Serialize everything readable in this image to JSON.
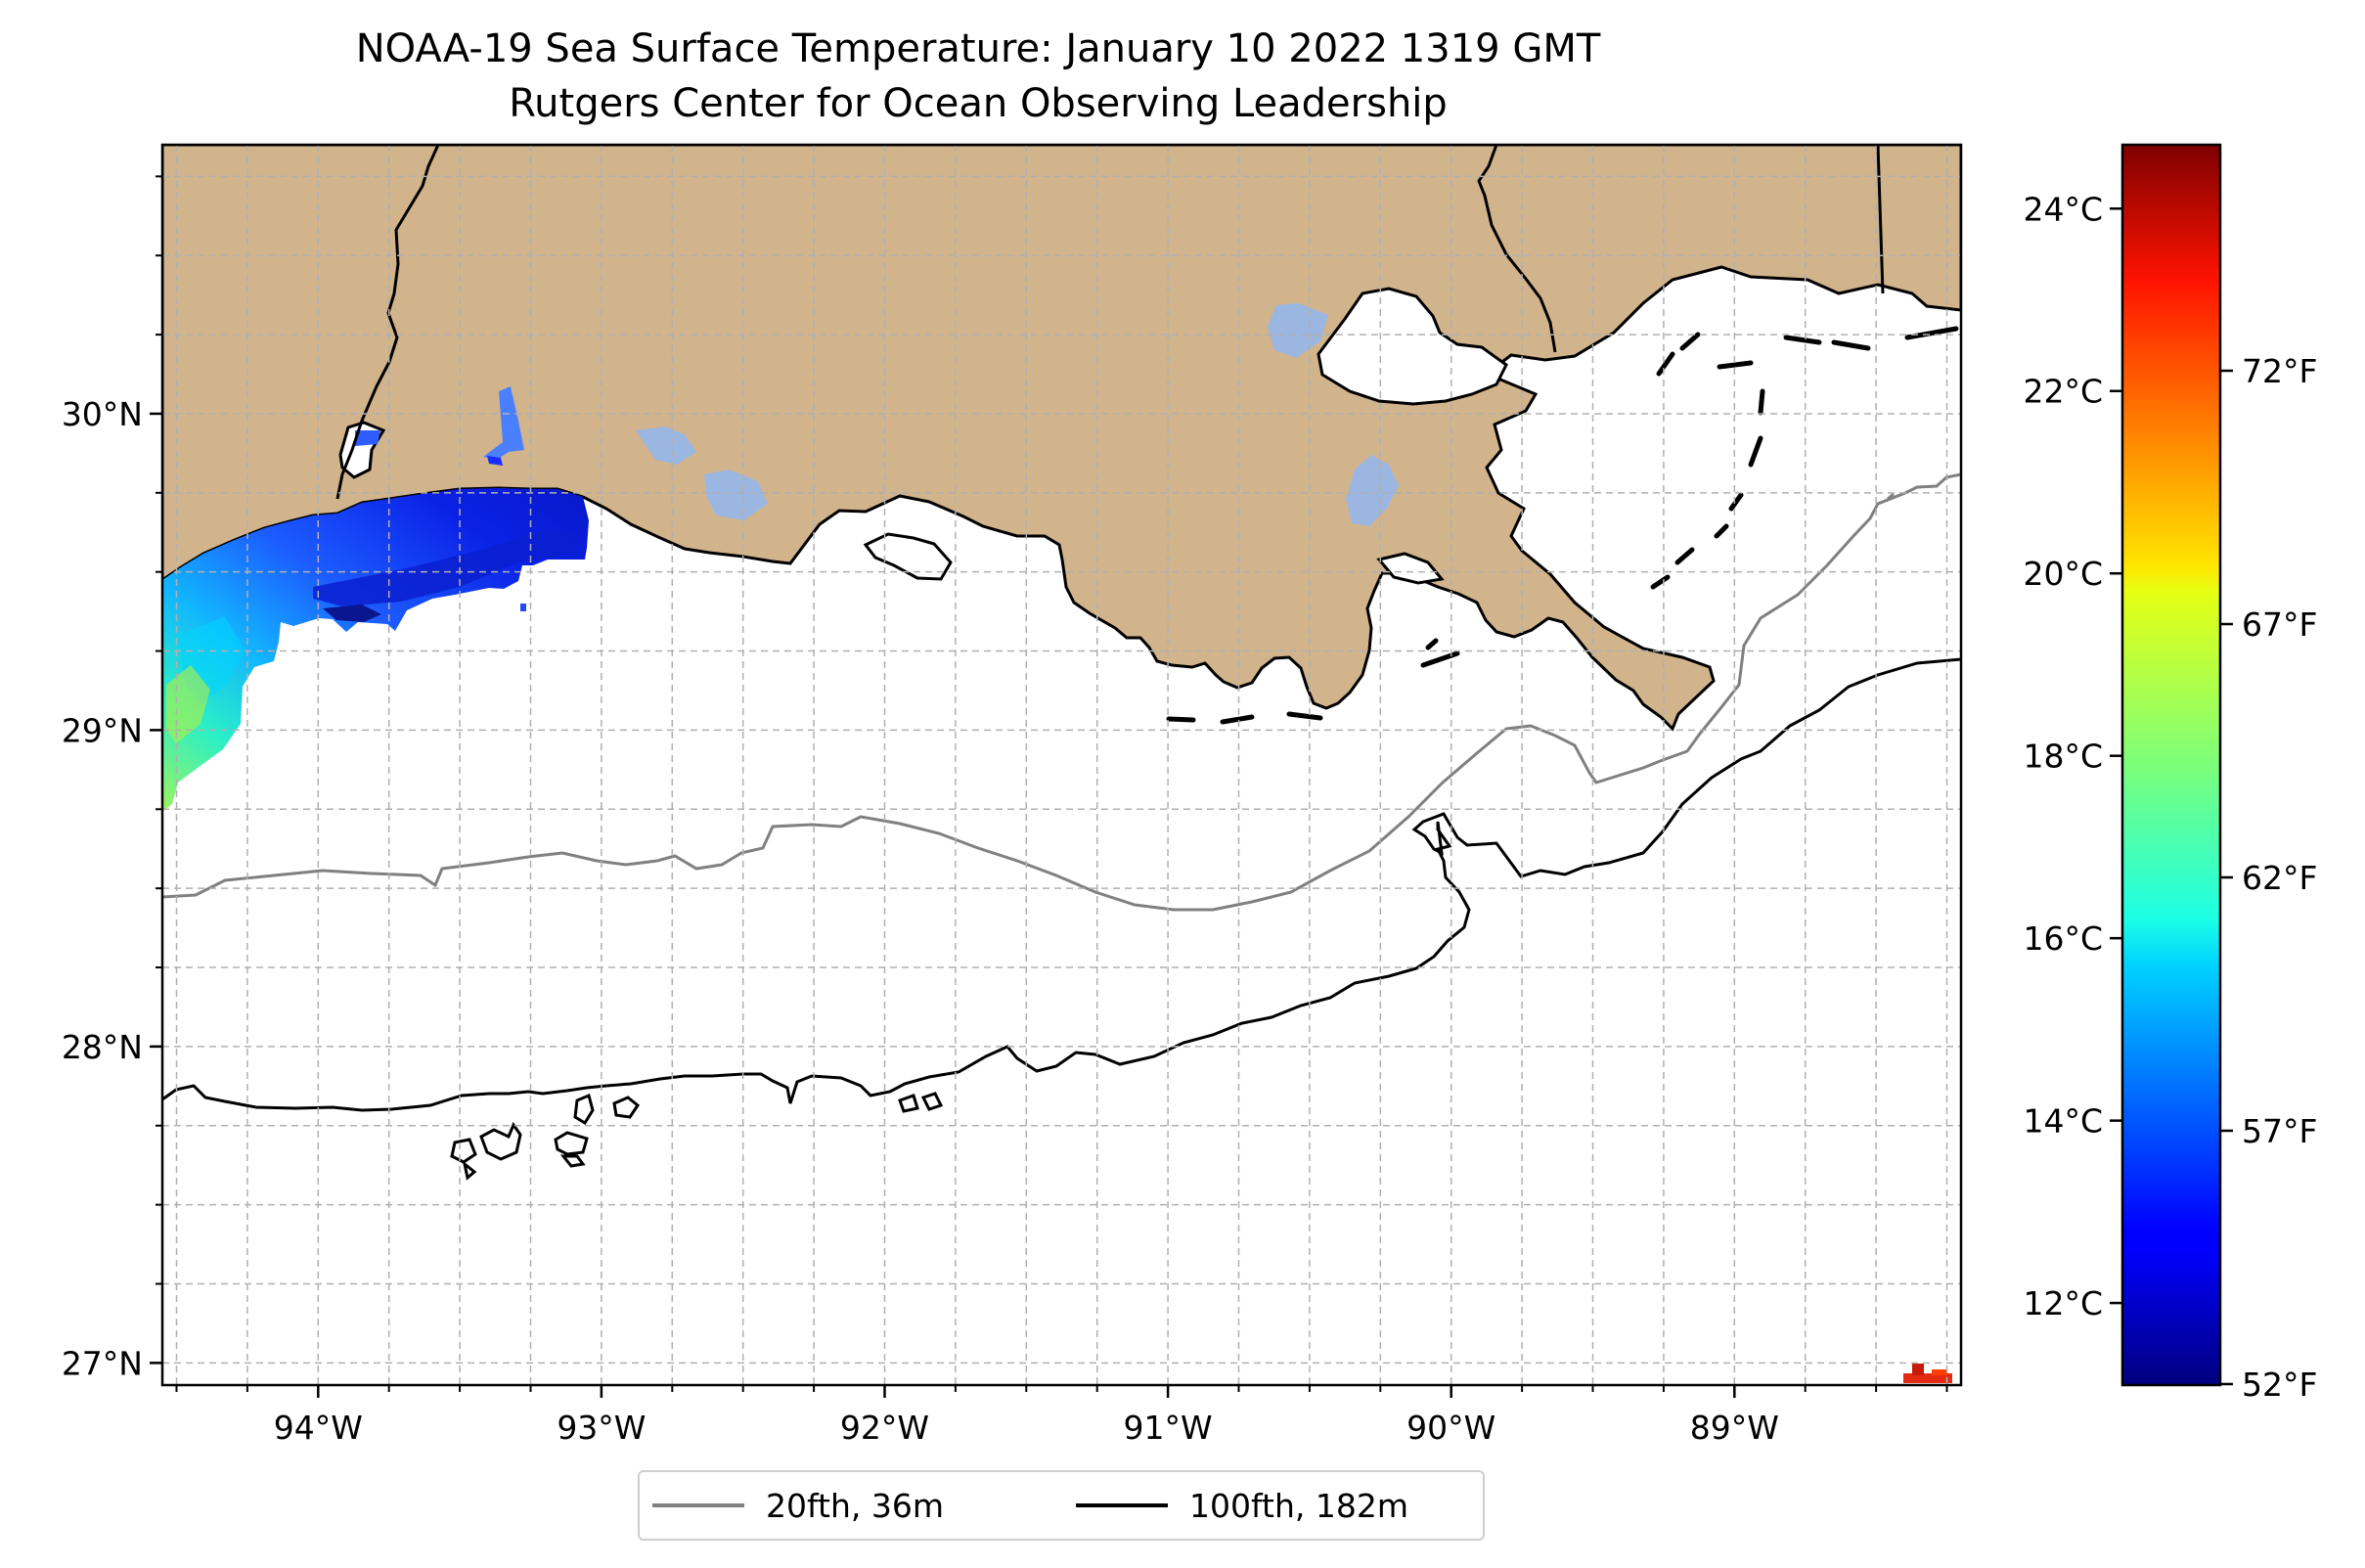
{
  "title": {
    "line1": "NOAA-19 Sea Surface Temperature: January 10 2022 1319 GMT",
    "line2": "Rutgers Center for Ocean Observing Leadership"
  },
  "map": {
    "lon_range": [
      -94.55,
      -88.2
    ],
    "lat_range": [
      26.93,
      30.85
    ],
    "lat_ticks": [
      {
        "value": 27,
        "label": "27°N"
      },
      {
        "value": 28,
        "label": "28°N"
      },
      {
        "value": 29,
        "label": "29°N"
      },
      {
        "value": 30,
        "label": "30°N"
      }
    ],
    "lon_ticks": [
      {
        "value": -94,
        "label": "94°W"
      },
      {
        "value": -93,
        "label": "93°W"
      },
      {
        "value": -92,
        "label": "92°W"
      },
      {
        "value": -91,
        "label": "91°W"
      },
      {
        "value": -90,
        "label": "90°W"
      },
      {
        "value": -89,
        "label": "89°W"
      }
    ],
    "grid": true,
    "colors": {
      "land": "#d2b48c",
      "water_lakes": "#9bb6e0",
      "isobath_20fth": "#808080",
      "isobath_100fth": "#000000"
    }
  },
  "colorbar": {
    "colormap": "jet",
    "range_celsius": [
      11.1,
      24.7
    ],
    "celsius_ticks": [
      {
        "value": 12,
        "label": "12°C"
      },
      {
        "value": 14,
        "label": "14°C"
      },
      {
        "value": 16,
        "label": "16°C"
      },
      {
        "value": 18,
        "label": "18°C"
      },
      {
        "value": 20,
        "label": "20°C"
      },
      {
        "value": 22,
        "label": "22°C"
      },
      {
        "value": 24,
        "label": "24°C"
      }
    ],
    "fahrenheit_ticks": [
      {
        "value": 52,
        "label": "52°F"
      },
      {
        "value": 57,
        "label": "57°F"
      },
      {
        "value": 62,
        "label": "62°F"
      },
      {
        "value": 67,
        "label": "67°F"
      },
      {
        "value": 72,
        "label": "72°F"
      }
    ]
  },
  "legend": {
    "items": [
      {
        "label": "20fth, 36m",
        "color": "#808080"
      },
      {
        "label": "100fth, 182m",
        "color": "#000000"
      }
    ]
  }
}
